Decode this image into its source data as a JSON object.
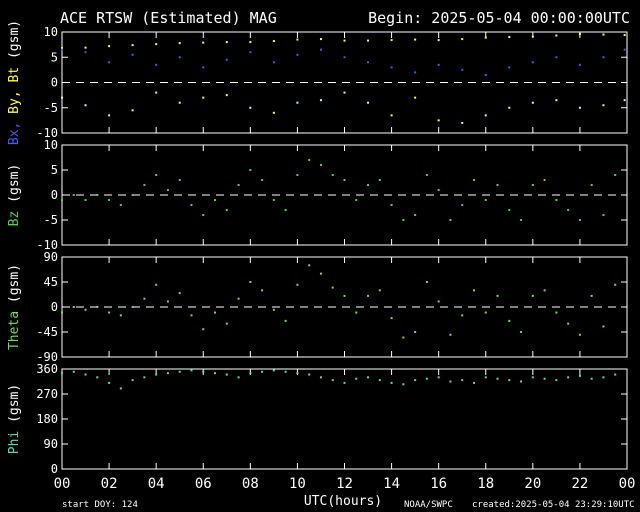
{
  "header": {
    "title": "ACE RTSW (Estimated) MAG",
    "begin": "Begin: 2025-05-04 00:00:00UTC"
  },
  "footer": {
    "start_doy": "start DOY:  124",
    "xlabel": "UTC(hours)",
    "source": "NOAA/SWPC",
    "created": "created:2025-05-04 23:29:10UTC"
  },
  "colors": {
    "background": "#000000",
    "axes": "#ffffff",
    "bx": "#3b5bff",
    "by": "#ffff3b",
    "bt": "#ffffff",
    "bz": "#4bd64b",
    "theta": "#7ed957",
    "phi": "#4fe0b0"
  },
  "chart_data": [
    {
      "type": "scatter",
      "panel": "bx-by-bt",
      "ylabel_parts": [
        {
          "text": "Bx,",
          "color": "#3b5bff"
        },
        {
          "text": " By,",
          "color": "#ffff3b"
        },
        {
          "text": " Bt",
          "color": "#ffff3b"
        },
        {
          "text": " (gsm)",
          "color": "#ffffff"
        }
      ],
      "xlim": [
        0,
        24
      ],
      "ylim": [
        -10,
        10
      ],
      "yticks": [
        "-10",
        "-5",
        "0",
        "5",
        "10"
      ],
      "zero_line": true,
      "series": [
        {
          "name": "Bt",
          "color": "#ffff3b",
          "x": [
            0,
            1,
            2,
            3,
            4,
            5,
            6,
            7,
            8,
            9,
            10,
            11,
            12,
            13,
            14,
            15,
            16,
            17,
            18,
            19,
            20,
            21,
            22,
            23,
            23.9
          ],
          "y": [
            6.8,
            6.9,
            7.2,
            7.4,
            7.6,
            7.8,
            7.9,
            8.0,
            8.0,
            8.2,
            8.5,
            8.6,
            8.3,
            8.3,
            8.4,
            8.5,
            8.4,
            8.6,
            8.9,
            9.0,
            9.1,
            9.3,
            9.6,
            9.5,
            9.4
          ]
        },
        {
          "name": "Bx",
          "color": "#3b5bff",
          "x": [
            0,
            1,
            2,
            3,
            4,
            5,
            6,
            7,
            8,
            9,
            10,
            11,
            12,
            13,
            14,
            15,
            16,
            17,
            18,
            19,
            20,
            21,
            22,
            23,
            23.9
          ],
          "y": [
            6.5,
            6.0,
            4.0,
            5.5,
            3.5,
            5.0,
            3.0,
            4.5,
            6.0,
            4.0,
            5.5,
            6.5,
            5.0,
            4.0,
            3.0,
            2.0,
            3.5,
            2.5,
            1.5,
            3.0,
            4.0,
            5.0,
            3.5,
            5.0,
            6.5
          ]
        },
        {
          "name": "By",
          "color": "#ffff3b",
          "x": [
            0,
            1,
            2,
            3,
            4,
            5,
            6,
            7,
            8,
            9,
            10,
            11,
            12,
            13,
            14,
            15,
            16,
            17,
            18,
            19,
            20,
            21,
            22,
            23,
            23.9
          ],
          "y": [
            -3.0,
            -4.5,
            -6.5,
            -5.5,
            -2.0,
            -4.0,
            -3.0,
            -2.5,
            -5.0,
            -6.0,
            -4.0,
            -3.5,
            -2.0,
            -4.0,
            -6.5,
            -3.0,
            -7.5,
            -8.0,
            -6.5,
            -5.0,
            -4.0,
            -3.5,
            -5.0,
            -4.5,
            -3.5
          ]
        }
      ]
    },
    {
      "type": "scatter",
      "panel": "bz",
      "ylabel_parts": [
        {
          "text": "Bz",
          "color": "#4bd64b"
        },
        {
          "text": "  (gsm)",
          "color": "#ffffff"
        }
      ],
      "xlim": [
        0,
        24
      ],
      "ylim": [
        -10,
        10
      ],
      "yticks": [
        "-10",
        "-5",
        "0",
        "5",
        "10"
      ],
      "zero_line": true,
      "series": [
        {
          "name": "Bz",
          "color": "#4bd64b",
          "x": [
            0,
            0.5,
            1,
            1.5,
            2,
            2.5,
            3,
            3.5,
            4,
            4.5,
            5,
            5.5,
            6,
            6.5,
            7,
            7.5,
            8,
            8.5,
            9,
            9.5,
            10,
            10.5,
            11,
            11.5,
            12,
            12.5,
            13,
            13.5,
            14,
            14.5,
            15,
            15.5,
            16,
            16.5,
            17,
            17.5,
            18,
            18.5,
            19,
            19.5,
            20,
            20.5,
            21,
            21.5,
            22,
            22.5,
            23,
            23.5
          ],
          "y": [
            -1,
            0,
            -1,
            0,
            -1,
            -2,
            0,
            2,
            4,
            1,
            3,
            -2,
            -4,
            -1,
            -3,
            2,
            5,
            3,
            -1,
            -3,
            4,
            7,
            6,
            4,
            3,
            -1,
            2,
            3,
            -2,
            -5,
            -4,
            4,
            1,
            -5,
            -2,
            3,
            -1,
            2,
            -3,
            -5,
            2,
            3,
            -1,
            -3,
            -5,
            2,
            -4,
            4
          ]
        }
      ]
    },
    {
      "type": "scatter",
      "panel": "theta",
      "ylabel_parts": [
        {
          "text": "Theta",
          "color": "#7ed957"
        },
        {
          "text": "  (gsm)",
          "color": "#ffffff"
        }
      ],
      "xlim": [
        0,
        24
      ],
      "ylim": [
        -90,
        90
      ],
      "yticks": [
        "-90",
        "-45",
        "0",
        "45",
        "90"
      ],
      "zero_line": true,
      "series": [
        {
          "name": "Theta",
          "color": "#7ed957",
          "x": [
            0,
            0.5,
            1,
            1.5,
            2,
            2.5,
            3,
            3.5,
            4,
            4.5,
            5,
            5.5,
            6,
            6.5,
            7,
            7.5,
            8,
            8.5,
            9,
            9.5,
            10,
            10.5,
            11,
            11.5,
            12,
            12.5,
            13,
            13.5,
            14,
            14.5,
            15,
            15.5,
            16,
            16.5,
            17,
            17.5,
            18,
            18.5,
            19,
            19.5,
            20,
            20.5,
            21,
            21.5,
            22,
            22.5,
            23,
            23.5
          ],
          "y": [
            -10,
            0,
            -5,
            0,
            -10,
            -15,
            0,
            15,
            40,
            10,
            25,
            -15,
            -40,
            -10,
            -30,
            15,
            45,
            30,
            -5,
            -25,
            40,
            75,
            60,
            35,
            20,
            -10,
            20,
            30,
            -20,
            -55,
            -45,
            45,
            10,
            -50,
            -15,
            30,
            -10,
            20,
            -25,
            -45,
            20,
            30,
            -10,
            -30,
            -50,
            20,
            -35,
            40
          ]
        }
      ]
    },
    {
      "type": "scatter",
      "panel": "phi",
      "ylabel_parts": [
        {
          "text": "Phi",
          "color": "#4fe0b0"
        },
        {
          "text": "  (gsm)",
          "color": "#ffffff"
        }
      ],
      "xlim": [
        0,
        24
      ],
      "ylim": [
        0,
        360
      ],
      "yticks": [
        "0",
        "90",
        "180",
        "270",
        "360"
      ],
      "zero_line": false,
      "series": [
        {
          "name": "Phi",
          "color": "#4fe0b0",
          "x": [
            0,
            0.5,
            1,
            1.5,
            2,
            2.5,
            3,
            3.5,
            4,
            4.5,
            5,
            5.5,
            6,
            6.5,
            7,
            7.5,
            8,
            8.5,
            9,
            9.5,
            10,
            10.5,
            11,
            11.5,
            12,
            12.5,
            13,
            13.5,
            14,
            14.5,
            15,
            15.5,
            16,
            16.5,
            17,
            17.5,
            18,
            18.5,
            19,
            19.5,
            20,
            20.5,
            21,
            21.5,
            22,
            22.5,
            23,
            23.5
          ],
          "y": [
            345,
            350,
            340,
            330,
            310,
            290,
            320,
            330,
            340,
            345,
            350,
            355,
            350,
            345,
            340,
            330,
            345,
            350,
            355,
            350,
            345,
            340,
            330,
            320,
            310,
            325,
            330,
            320,
            310,
            305,
            320,
            325,
            330,
            315,
            320,
            310,
            330,
            325,
            320,
            315,
            330,
            325,
            320,
            330,
            335,
            325,
            330,
            340
          ]
        }
      ]
    }
  ],
  "x_axis": {
    "ticks": [
      "00",
      "02",
      "04",
      "06",
      "08",
      "10",
      "12",
      "14",
      "16",
      "18",
      "20",
      "22",
      "00"
    ]
  }
}
